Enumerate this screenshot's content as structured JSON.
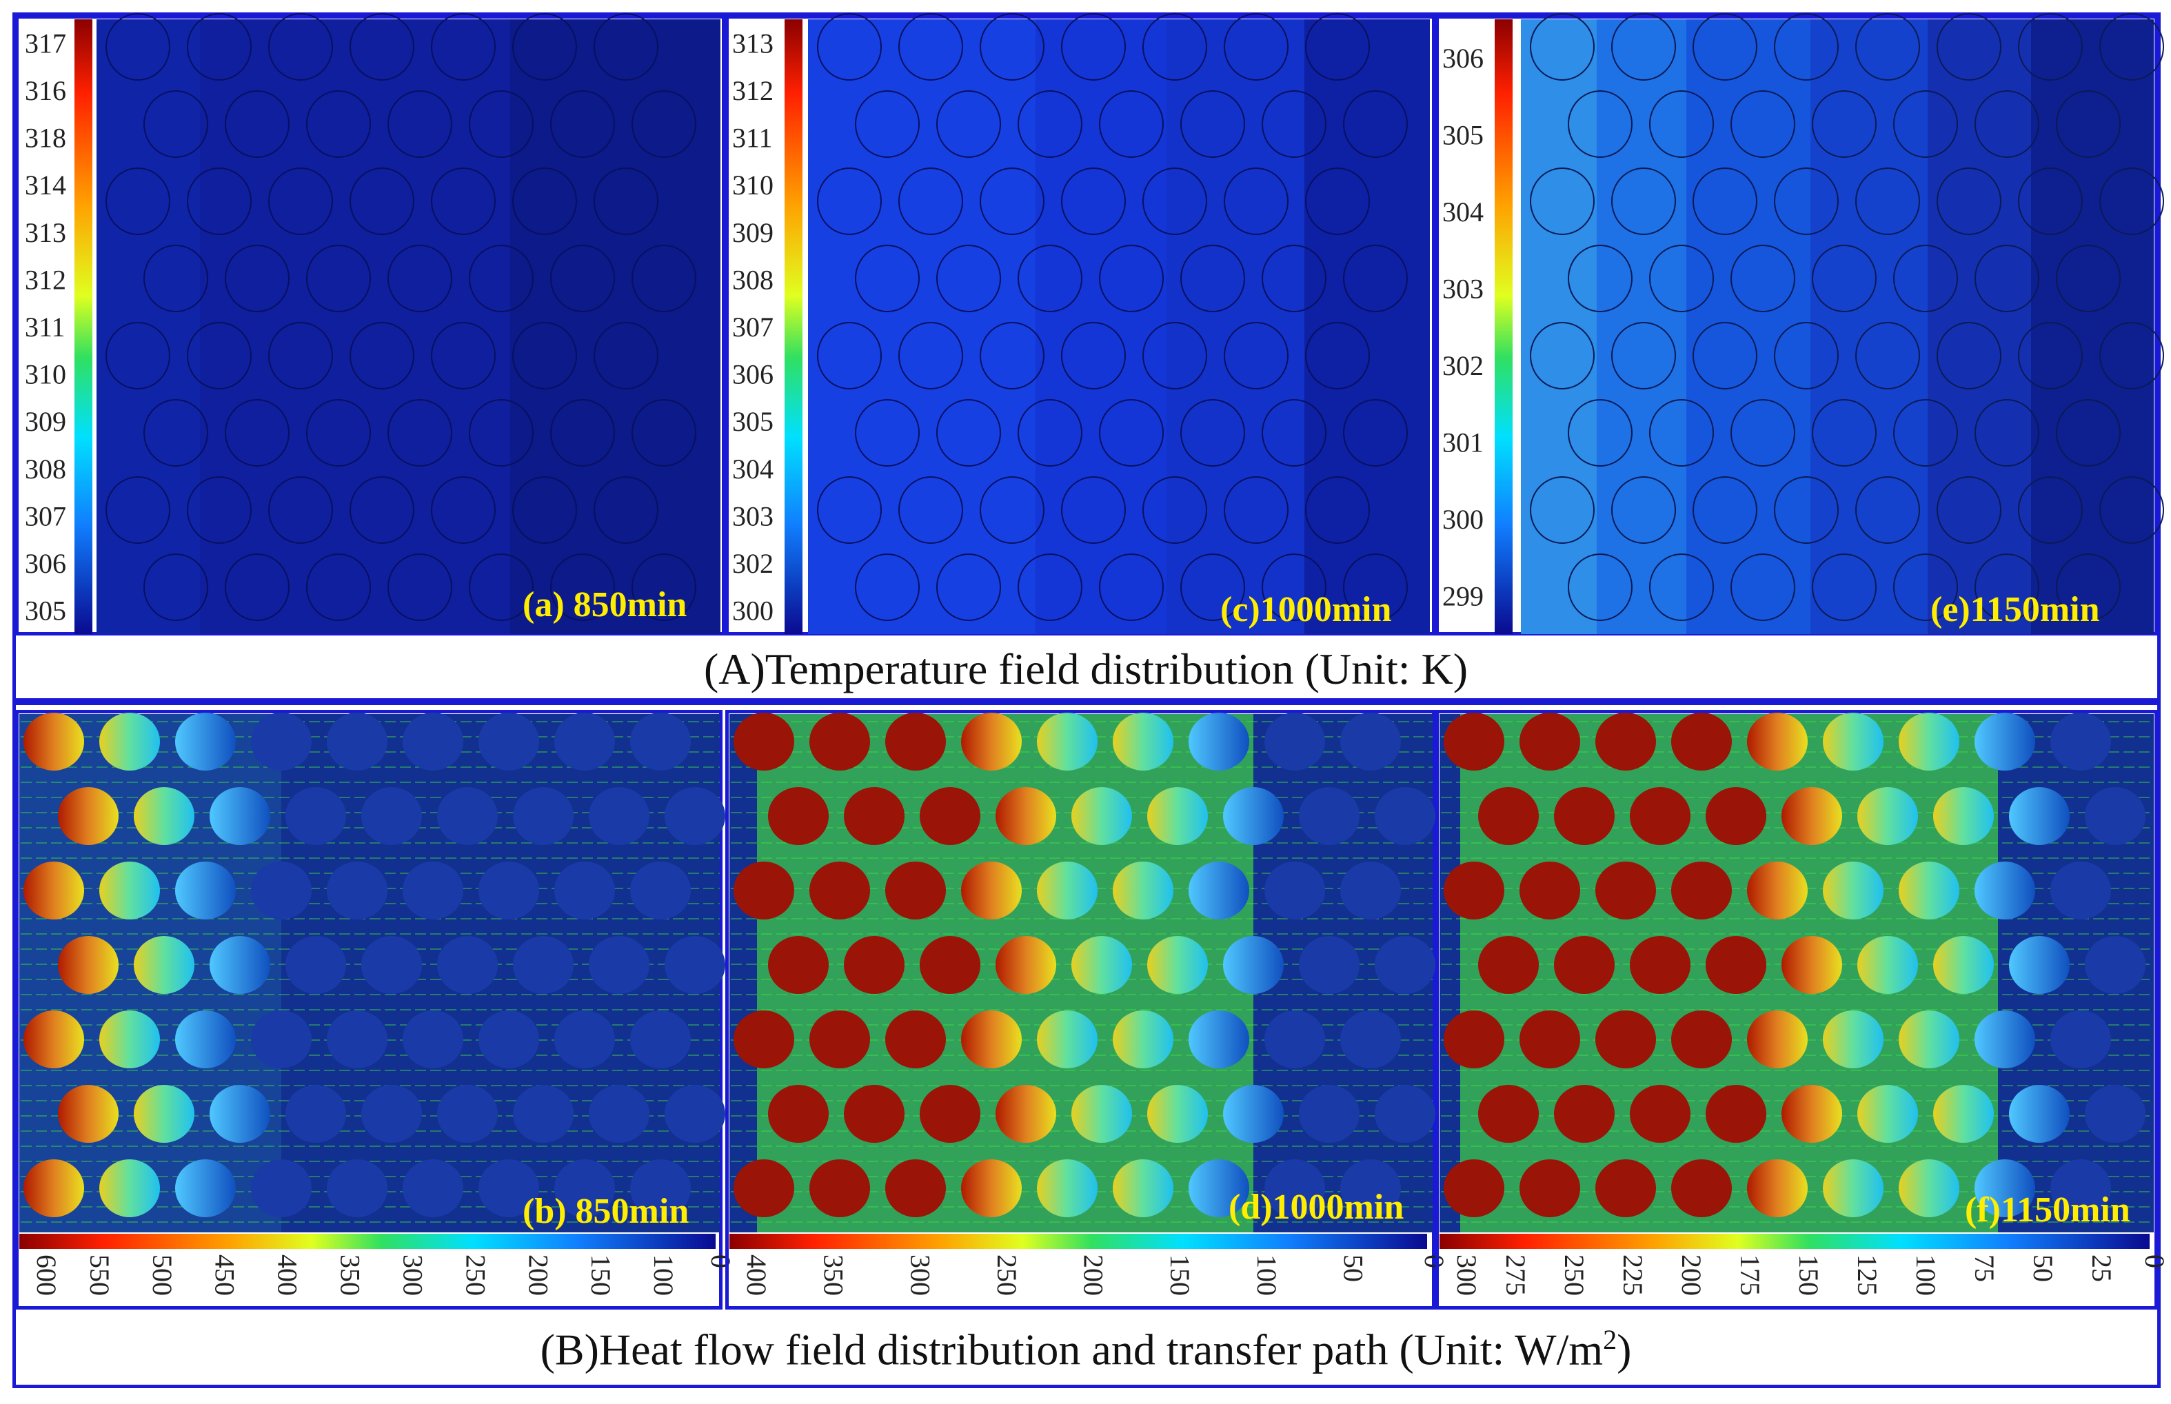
{
  "section_a": {
    "caption": "(A)Temperature field distribution (Unit: K)",
    "panels": [
      {
        "label": "(a) 850min",
        "ticks": [
          "317",
          "316",
          "318",
          "314",
          "313",
          "312",
          "311",
          "310",
          "309",
          "308",
          "307",
          "306",
          "305"
        ],
        "fill": "#0f1f9e"
      },
      {
        "label": "(c)1000min",
        "ticks": [
          "313",
          "312",
          "311",
          "310",
          "309",
          "308",
          "307",
          "306",
          "305",
          "304",
          "303",
          "302",
          "300"
        ],
        "fill": "#1436d6"
      },
      {
        "label": "(e)1150min",
        "ticks": [
          "306",
          "305",
          "304",
          "303",
          "302",
          "301",
          "300",
          "299"
        ],
        "fill": "#1a6ae0"
      }
    ]
  },
  "section_b": {
    "caption_main": "(B)Heat flow field distribution and transfer path (Unit: W/m",
    "caption_sup": "2",
    "caption_end": ")",
    "panels": [
      {
        "label": "(b) 850min",
        "ticks": [
          "600",
          "550",
          "500",
          "450",
          "400",
          "350",
          "300",
          "250",
          "200",
          "150",
          "100",
          "0"
        ]
      },
      {
        "label": "(d)1000min",
        "ticks": [
          "400",
          "350",
          "300",
          "250",
          "200",
          "150",
          "100",
          "50",
          "0"
        ]
      },
      {
        "label": "(f)1150min",
        "ticks": [
          "300",
          "275",
          "250",
          "225",
          "200",
          "175",
          "150",
          "125",
          "100",
          "75",
          "50",
          "25",
          "0"
        ]
      }
    ]
  },
  "colors": {
    "frame": "#1a1ad6",
    "label": "#ffee00",
    "dark_blue": "#0b1a8a",
    "green": "#3ee63e"
  }
}
